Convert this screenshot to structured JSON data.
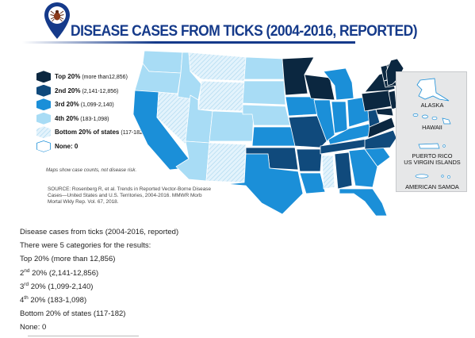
{
  "title": "DISEASE CASES FROM TICKS (2004-2016, REPORTED)",
  "legend": [
    {
      "bold": "Top 20%",
      "range": "(more than12,856)",
      "color": "#0b2740"
    },
    {
      "bold": "2nd 20%",
      "range": "(2,141-12,856)",
      "color": "#104a7c"
    },
    {
      "bold": "3rd 20%",
      "range": "(1,099-2,140)",
      "color": "#1b8fd8"
    },
    {
      "bold": "4th 20%",
      "range": "(183-1,098)",
      "color": "#a8dcf5"
    },
    {
      "bold": "Bottom 20% of states",
      "range": "(117-182)",
      "color": "#d7eefb"
    },
    {
      "bold": "None: 0",
      "range": "",
      "color": "#ffffff"
    }
  ],
  "note": "Maps show case counts, not disease risk.",
  "source": "SOURCE: Rosenberg R, et al. Trends in Reported Vector-Borne Disease Cases—United States and U.S. Territories, 2004-2016. MMWR Morb Mortal Wkly Rep. Vol. 67, 2018.",
  "territories": [
    "ALASKA",
    "HAWAII",
    "PUERTO RICO",
    "US VIRGIN ISLANDS",
    "AMERICAN SAMOA"
  ],
  "text": {
    "heading": "Disease cases from ticks (2004-2016, reported)",
    "intro": "There were 5 categories for the results:",
    "items": [
      {
        "pre": "Top 20% (more than 12,856)",
        "sup": "",
        "post": ""
      },
      {
        "pre": "2",
        "sup": "nd",
        "post": " 20% (2,141-12,856)"
      },
      {
        "pre": "3",
        "sup": "rd",
        "post": " 20% (1,099-2,140)"
      },
      {
        "pre": "4",
        "sup": "th",
        "post": " 20% (183-1,098)"
      },
      {
        "pre": "Bottom 20% of states (117-182)",
        "sup": "",
        "post": ""
      },
      {
        "pre": "None: 0",
        "sup": "",
        "post": ""
      }
    ]
  },
  "colors": {
    "title": "#153a8a",
    "top": "#0b2740",
    "second": "#104a7c",
    "third": "#1b8fd8",
    "fourth": "#a8dcf5",
    "bottom": "#d7eefb",
    "none": "#ffffff",
    "territory_panel": "#e6e7e8"
  },
  "icons": [
    "map-pin-icon",
    "tick-icon"
  ]
}
